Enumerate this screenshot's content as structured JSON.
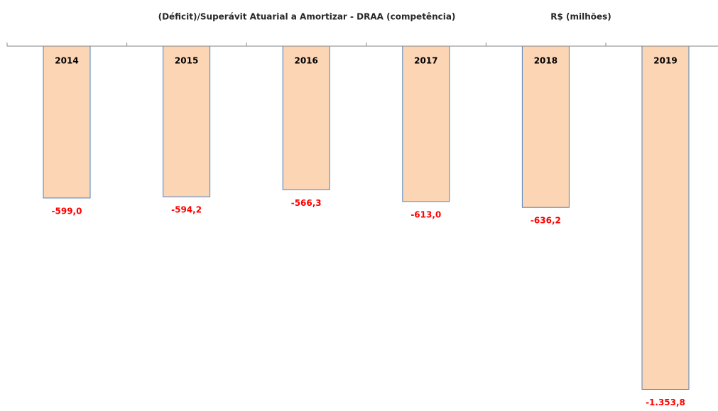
{
  "chart_data": {
    "type": "bar",
    "title": "(Déficit)/Superávit Atuarial a Amortizar - DRAA (competência)",
    "subtitle": "R$ (milhões)",
    "categories": [
      "2014",
      "2015",
      "2016",
      "2017",
      "2018",
      "2019"
    ],
    "values": [
      -599.0,
      -594.2,
      -566.3,
      -613.0,
      -636.2,
      -1353.8
    ],
    "value_labels": [
      "-599,0",
      "-594,2",
      "-566,3",
      "-613,0",
      "-636,2",
      "-1.353,8"
    ],
    "color": "#fcd5b4",
    "edge_color": "#4f81bd",
    "label_color": "#ff0000",
    "ylim": [
      -1400,
      0
    ]
  }
}
